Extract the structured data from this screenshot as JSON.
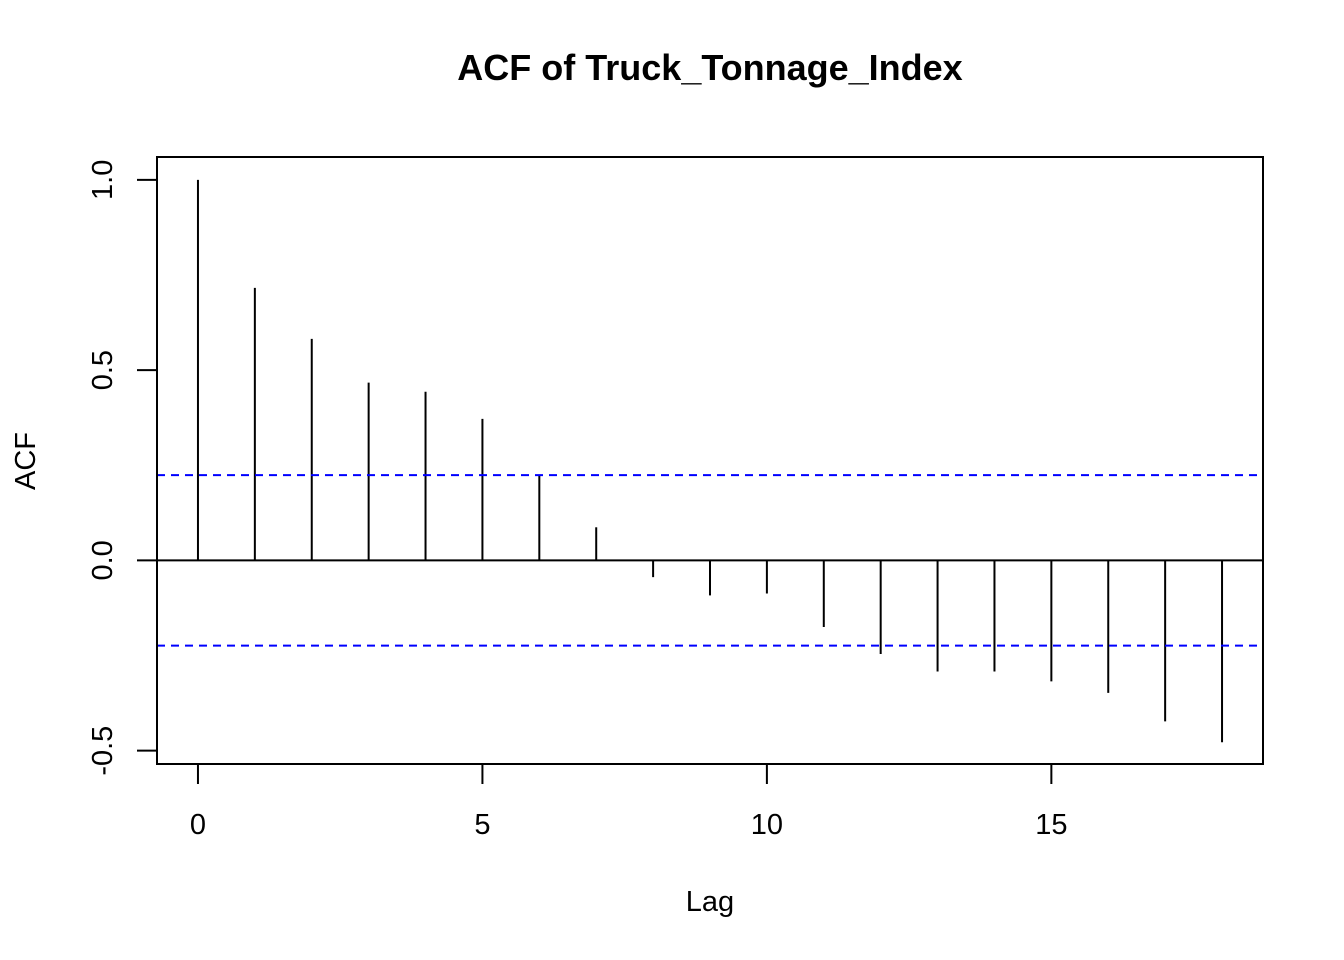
{
  "chart_data": {
    "type": "bar",
    "title": "ACF of Truck_Tonnage_Index",
    "xlabel": "Lag",
    "ylabel": "ACF",
    "lags": [
      0,
      1,
      2,
      3,
      4,
      5,
      6,
      7,
      8,
      9,
      10,
      11,
      12,
      13,
      14,
      15,
      16,
      17,
      18
    ],
    "values": [
      1.0,
      0.716,
      0.582,
      0.467,
      0.443,
      0.372,
      0.222,
      0.087,
      -0.044,
      -0.092,
      -0.087,
      -0.175,
      -0.246,
      -0.292,
      -0.292,
      -0.318,
      -0.348,
      -0.423,
      -0.478
    ],
    "xlim": [
      -0.72,
      18.72
    ],
    "ylim": [
      -0.535,
      1.06
    ],
    "x_ticks": [
      0,
      5,
      10,
      15
    ],
    "y_ticks": [
      -0.5,
      0.0,
      0.5,
      1.0
    ],
    "x_tick_labels": [
      "0",
      "5",
      "10",
      "15"
    ],
    "y_tick_labels": [
      "-0.5",
      "0.0",
      "0.5",
      "1.0"
    ],
    "confidence_bound": 0.224,
    "confidence_color": "#0000ff",
    "bar_color": "#000000",
    "grid": false,
    "legend": "none"
  }
}
